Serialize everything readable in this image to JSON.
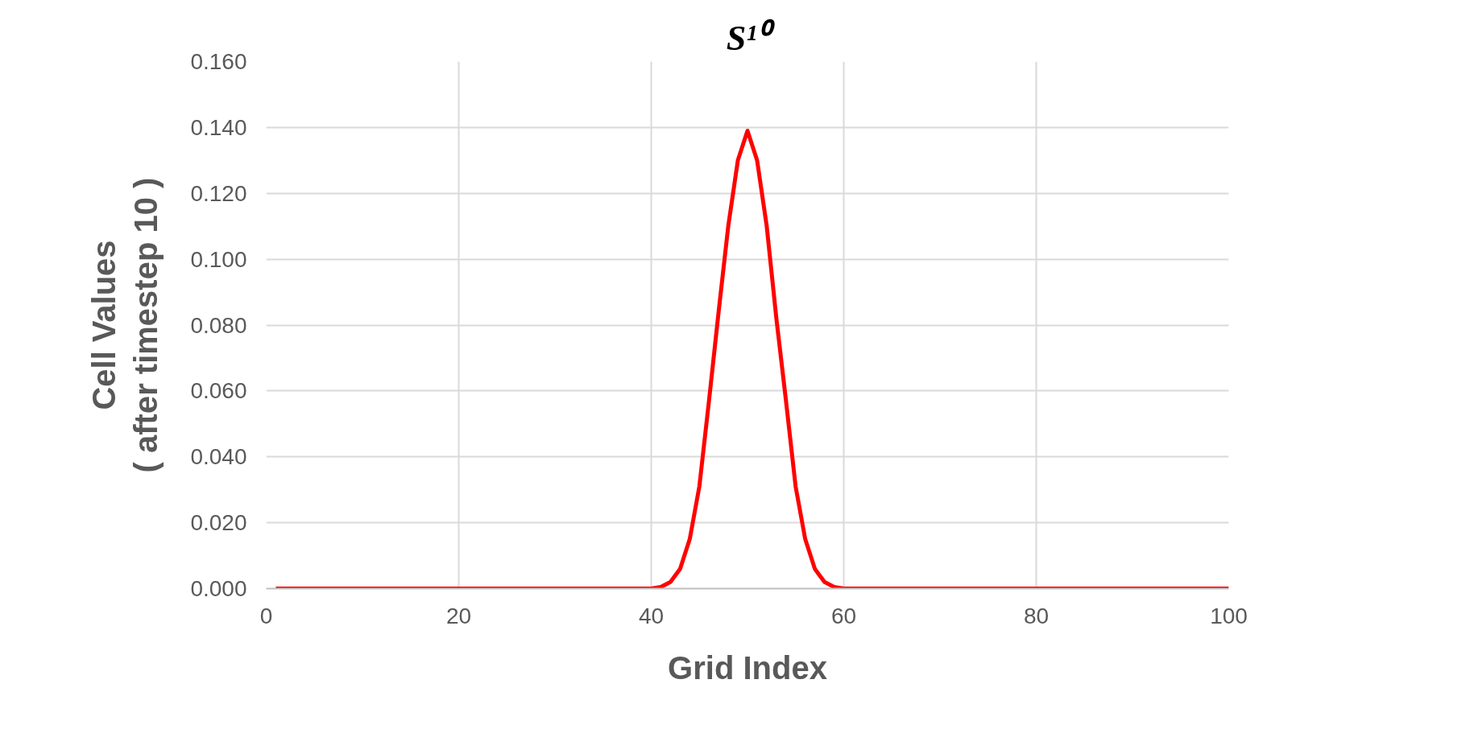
{
  "chart_data": {
    "type": "line",
    "title": "S¹⁰",
    "xlabel": "Grid Index",
    "ylabel": "Cell Values\n( after timestep 10 )",
    "x": [
      1,
      40,
      41,
      42,
      43,
      44,
      45,
      46,
      47,
      48,
      49,
      50,
      51,
      52,
      53,
      54,
      55,
      56,
      57,
      58,
      59,
      60,
      100
    ],
    "series": [
      {
        "color": "#ff0000",
        "values": [
          0,
          0,
          0.0005,
          0.002,
          0.006,
          0.015,
          0.031,
          0.057,
          0.084,
          0.11,
          0.13,
          0.139,
          0.13,
          0.11,
          0.082,
          0.057,
          0.031,
          0.015,
          0.006,
          0.002,
          0.0005,
          0,
          0
        ]
      }
    ],
    "xlim": [
      0,
      100
    ],
    "xticks": [
      0,
      20,
      40,
      60,
      80,
      100
    ],
    "ylim": [
      0,
      0.16
    ],
    "yticks": [
      {
        "value": 0,
        "label": "0.000"
      },
      {
        "value": 0.02,
        "label": "0.020"
      },
      {
        "value": 0.04,
        "label": "0.040"
      },
      {
        "value": 0.06,
        "label": "0.060"
      },
      {
        "value": 0.08,
        "label": "0.080"
      },
      {
        "value": 0.1,
        "label": "0.100"
      },
      {
        "value": 0.12,
        "label": "0.120"
      },
      {
        "value": 0.14,
        "label": "0.140"
      },
      {
        "value": 0.16,
        "label": "0.160"
      }
    ],
    "grid": true,
    "marker": "none",
    "line_style": "solid"
  }
}
